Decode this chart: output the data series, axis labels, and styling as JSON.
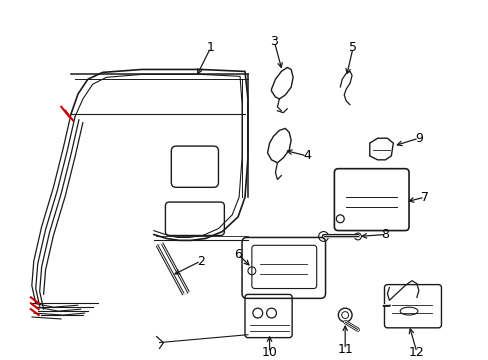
{
  "bg_color": "#ffffff",
  "line_color": "#1a1a1a",
  "red_color": "#cc0000",
  "lw": 1.0,
  "fig_w": 4.89,
  "fig_h": 3.6,
  "dpi": 100
}
